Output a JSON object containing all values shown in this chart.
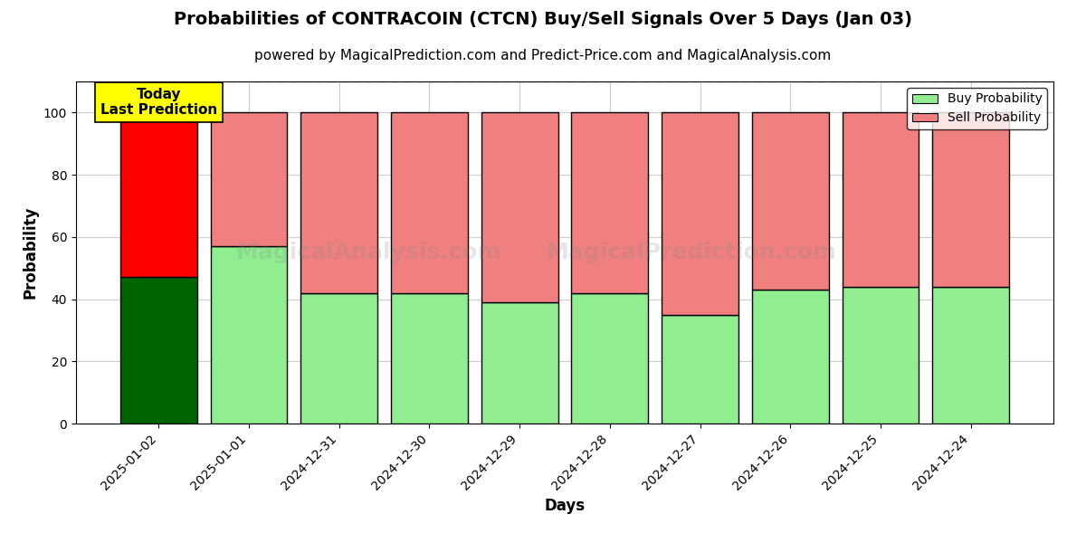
{
  "title": "Probabilities of CONTRACOIN (CTCN) Buy/Sell Signals Over 5 Days (Jan 03)",
  "subtitle": "powered by MagicalPrediction.com and Predict-Price.com and MagicalAnalysis.com",
  "xlabel": "Days",
  "ylabel": "Probability",
  "categories": [
    "2025-01-02",
    "2025-01-01",
    "2024-12-31",
    "2024-12-30",
    "2024-12-29",
    "2024-12-28",
    "2024-12-27",
    "2024-12-26",
    "2024-12-25",
    "2024-12-24"
  ],
  "buy_values": [
    47,
    57,
    42,
    42,
    39,
    42,
    35,
    43,
    44,
    44
  ],
  "sell_values": [
    53,
    43,
    58,
    58,
    61,
    58,
    65,
    57,
    56,
    56
  ],
  "buy_color_today": "#006400",
  "sell_color_today": "#FF0000",
  "buy_color_normal": "#90EE90",
  "sell_color_normal": "#F08080",
  "today_annotation_text": "Today\nLast Prediction",
  "today_annotation_bg": "#FFFF00",
  "legend_buy_label": "Buy Probability",
  "legend_sell_label": "Sell Probability",
  "ylim": [
    0,
    110
  ],
  "yticks": [
    0,
    20,
    40,
    60,
    80,
    100
  ],
  "dashed_line_y": 110,
  "bar_width": 0.85,
  "edge_color": "#000000",
  "edge_linewidth": 1.0,
  "title_fontsize": 14,
  "subtitle_fontsize": 11,
  "axis_label_fontsize": 12,
  "tick_fontsize": 10,
  "legend_fontsize": 10,
  "annotation_fontsize": 11,
  "bg_color": "#ffffff",
  "grid_color": "#cccccc",
  "fig_width": 12,
  "fig_height": 6
}
